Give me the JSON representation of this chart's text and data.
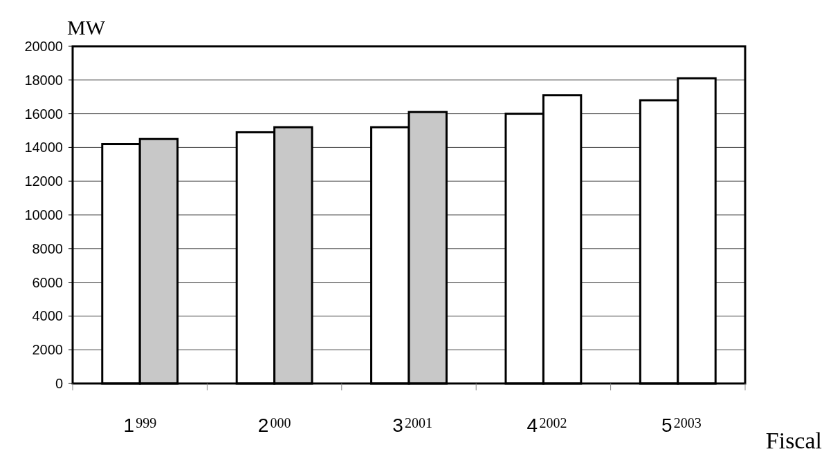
{
  "chart_data": {
    "type": "bar",
    "ylabel": "MW",
    "xlabel": "Fiscal",
    "categories": [
      "1",
      "2",
      "3",
      "4",
      "5"
    ],
    "series": [
      {
        "color": "#ffffff",
        "values": [
          14200,
          14900,
          15200,
          16000,
          16800
        ]
      },
      {
        "colors": [
          "#c8c8c8",
          "#c8c8c8",
          "#c8c8c8",
          "#ffffff",
          "#ffffff"
        ],
        "values": [
          14500,
          15200,
          16100,
          17100,
          18100
        ]
      }
    ],
    "ylim": [
      0,
      20000
    ],
    "yticks": [
      0,
      2000,
      4000,
      6000,
      8000,
      10000,
      12000,
      14000,
      16000,
      18000,
      20000
    ],
    "grid": "y",
    "annotations": [
      "999",
      "000",
      "2001",
      "2002",
      "2003"
    ]
  }
}
